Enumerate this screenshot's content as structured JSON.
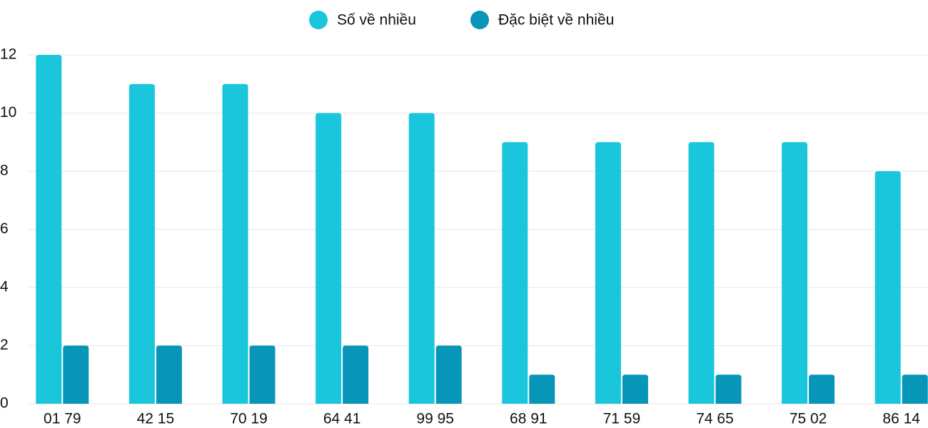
{
  "chart_data": {
    "type": "bar",
    "categories": [
      "01 79",
      "42 15",
      "70 19",
      "64 41",
      "99 95",
      "68 91",
      "71 59",
      "74 65",
      "75 02",
      "86 14"
    ],
    "series": [
      {
        "name": "Số về nhiều",
        "color": "#1ac6db",
        "values": [
          12,
          11,
          11,
          10,
          10,
          9,
          9,
          9,
          9,
          8
        ]
      },
      {
        "name": "Đặc biệt về nhiều",
        "color": "#0795b8",
        "values": [
          2,
          2,
          2,
          2,
          2,
          1,
          1,
          1,
          1,
          1
        ]
      }
    ],
    "ylim": [
      0,
      12
    ],
    "yticks": [
      0,
      2,
      4,
      6,
      8,
      10,
      12
    ],
    "grid": true,
    "legend": "top"
  }
}
